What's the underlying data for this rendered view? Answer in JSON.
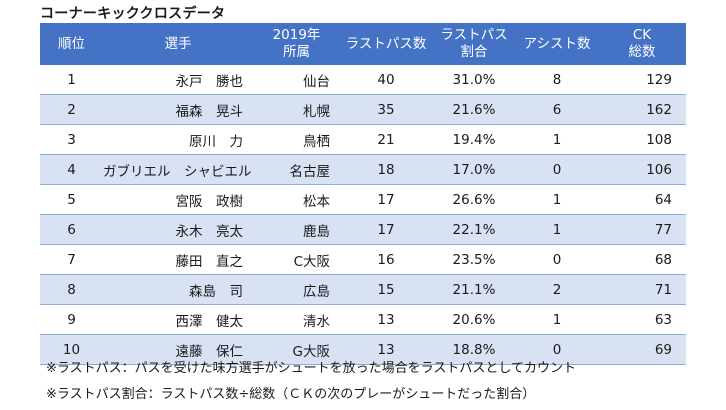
{
  "title": "コーナーキッククロスデータ",
  "headers": {
    "rank": "順位",
    "player": "選手",
    "club_line1": "2019年",
    "club_line2": "所属",
    "last_pass": "ラストパス数",
    "rate_line1": "ラストパス",
    "rate_line2": "割合",
    "assist": "アシスト数",
    "ck_line1": "CK",
    "ck_line2": "総数"
  },
  "rows": [
    {
      "rank": "1",
      "player": "永戸　勝也",
      "club": "仙台",
      "last_pass": "40",
      "rate": "31.0%",
      "assist": "8",
      "ck": "129"
    },
    {
      "rank": "2",
      "player": "福森　晃斗",
      "club": "札幌",
      "last_pass": "35",
      "rate": "21.6%",
      "assist": "6",
      "ck": "162"
    },
    {
      "rank": "3",
      "player": "原川　力",
      "club": "鳥栖",
      "last_pass": "21",
      "rate": "19.4%",
      "assist": "1",
      "ck": "108"
    },
    {
      "rank": "4",
      "player": "ガブリエル　シャビエル",
      "club": "名古屋",
      "last_pass": "18",
      "rate": "17.0%",
      "assist": "0",
      "ck": "106"
    },
    {
      "rank": "5",
      "player": "宮阪　政樹",
      "club": "松本",
      "last_pass": "17",
      "rate": "26.6%",
      "assist": "1",
      "ck": "64"
    },
    {
      "rank": "6",
      "player": "永木　亮太",
      "club": "鹿島",
      "last_pass": "17",
      "rate": "22.1%",
      "assist": "1",
      "ck": "77"
    },
    {
      "rank": "7",
      "player": "藤田　直之",
      "club": "C大阪",
      "last_pass": "16",
      "rate": "23.5%",
      "assist": "0",
      "ck": "68"
    },
    {
      "rank": "8",
      "player": "森島　司",
      "club": "広島",
      "last_pass": "15",
      "rate": "21.1%",
      "assist": "2",
      "ck": "71"
    },
    {
      "rank": "9",
      "player": "西澤　健太",
      "club": "清水",
      "last_pass": "13",
      "rate": "20.6%",
      "assist": "1",
      "ck": "63"
    },
    {
      "rank": "10",
      "player": "遠藤　保仁",
      "club": "G大阪",
      "last_pass": "13",
      "rate": "18.8%",
      "assist": "0",
      "ck": "69"
    }
  ],
  "notes": [
    "※ラストパス：パスを受けた味方選手がシュートを放った場合をラストパスとしてカウント",
    "※ラストパス割合：ラストパス数÷総数（ＣＫの次のプレーがシュートだった割合）"
  ],
  "colors": {
    "header_bg": "#4472c4",
    "header_text": "#ffffff",
    "alt_row_bg": "#d9e2f3",
    "row_border": "#8eaadb"
  }
}
